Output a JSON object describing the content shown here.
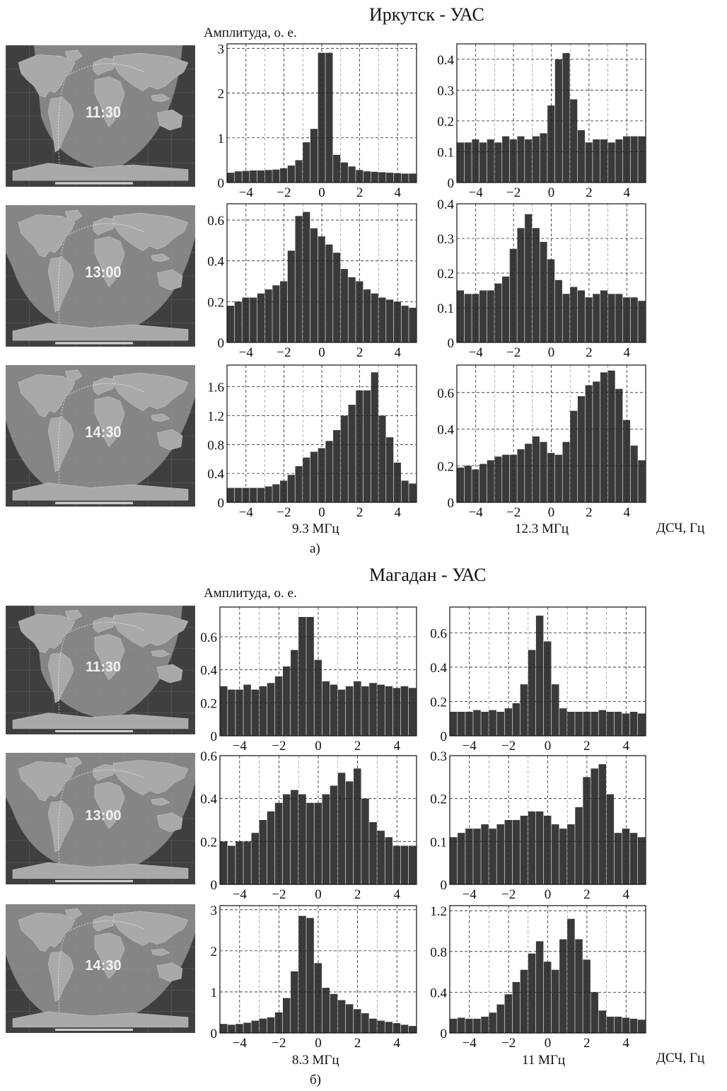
{
  "figure": {
    "panels": [
      {
        "title": "Иркутск - УАС",
        "amplitude_label": "Амплитуда, о. е.",
        "xaxis_label": "ДСЧ, Гц",
        "frequencies": [
          "9.3 МГц",
          "12.3 МГц"
        ],
        "sublabel": "а)",
        "map_times": [
          "11:30",
          "13:00",
          "14:30"
        ]
      },
      {
        "title": "Магадан - УАС",
        "amplitude_label": "Амплитуда, о. е.",
        "xaxis_label": "ДСЧ, Гц",
        "frequencies": [
          "8.3 МГц",
          "11 МГц"
        ],
        "sublabel": "б)",
        "map_times": [
          "11:30",
          "13:00",
          "14:30"
        ]
      }
    ]
  },
  "colors": {
    "bar": "#3a3a3a",
    "grid": "#222222",
    "map_land": "#a9a9a9",
    "map_ocean": "#3f3f3f",
    "map_day": "#8d8d8d",
    "map_text": "#f2f2f2"
  },
  "chart_data": [
    {
      "type": "bar",
      "xlim": [
        -5,
        5
      ],
      "ylim": [
        0,
        3.1
      ],
      "xticks": [
        -4,
        -2,
        0,
        2,
        4
      ],
      "yticks": [
        0,
        1,
        2,
        3
      ],
      "ytick_labels": [
        "0",
        "1",
        "2",
        "3"
      ],
      "grid": true,
      "bins": [
        -4.8,
        -4.4,
        -4,
        -3.6,
        -3.2,
        -2.8,
        -2.4,
        -2,
        -1.6,
        -1.2,
        -0.8,
        -0.4,
        0,
        0.4,
        0.8,
        1.2,
        1.6,
        2,
        2.4,
        2.8,
        3.2,
        3.6,
        4,
        4.4,
        4.8
      ],
      "values": [
        0.22,
        0.25,
        0.26,
        0.27,
        0.27,
        0.28,
        0.29,
        0.32,
        0.38,
        0.5,
        0.9,
        1.2,
        2.9,
        2.9,
        0.62,
        0.45,
        0.36,
        0.28,
        0.25,
        0.24,
        0.23,
        0.22,
        0.21,
        0.2,
        0.2
      ]
    },
    {
      "type": "bar",
      "xlim": [
        -5,
        5
      ],
      "ylim": [
        0,
        0.45
      ],
      "xticks": [
        -4,
        -2,
        0,
        2,
        4
      ],
      "yticks": [
        0,
        0.1,
        0.2,
        0.3,
        0.4
      ],
      "ytick_labels": [
        "0",
        "0.1",
        "0.2",
        "0.3",
        "0.4"
      ],
      "grid": true,
      "bins": [
        -4.8,
        -4.4,
        -4,
        -3.6,
        -3.2,
        -2.8,
        -2.4,
        -2,
        -1.6,
        -1.2,
        -0.8,
        -0.4,
        0,
        0.4,
        0.8,
        1.2,
        1.6,
        2,
        2.4,
        2.8,
        3.2,
        3.6,
        4,
        4.4,
        4.8
      ],
      "values": [
        0.13,
        0.13,
        0.14,
        0.13,
        0.14,
        0.13,
        0.15,
        0.14,
        0.15,
        0.14,
        0.15,
        0.16,
        0.25,
        0.4,
        0.42,
        0.27,
        0.17,
        0.13,
        0.14,
        0.14,
        0.13,
        0.14,
        0.15,
        0.15,
        0.15
      ]
    },
    {
      "type": "bar",
      "xlim": [
        -5,
        5
      ],
      "ylim": [
        0,
        0.68
      ],
      "xticks": [
        -4,
        -2,
        0,
        2,
        4
      ],
      "yticks": [
        0,
        0.2,
        0.4,
        0.6
      ],
      "ytick_labels": [
        "0",
        "0.2",
        "0.4",
        "0.6"
      ],
      "grid": true,
      "bins": [
        -4.8,
        -4.4,
        -4,
        -3.6,
        -3.2,
        -2.8,
        -2.4,
        -2,
        -1.6,
        -1.2,
        -0.8,
        -0.4,
        0,
        0.4,
        0.8,
        1.2,
        1.6,
        2,
        2.4,
        2.8,
        3.2,
        3.6,
        4,
        4.4,
        4.8
      ],
      "values": [
        0.18,
        0.2,
        0.22,
        0.22,
        0.24,
        0.26,
        0.28,
        0.3,
        0.45,
        0.62,
        0.64,
        0.56,
        0.52,
        0.48,
        0.44,
        0.36,
        0.32,
        0.3,
        0.26,
        0.24,
        0.22,
        0.21,
        0.2,
        0.18,
        0.17
      ]
    },
    {
      "type": "bar",
      "xlim": [
        -5,
        5
      ],
      "ylim": [
        0,
        0.4
      ],
      "xticks": [
        -4,
        -2,
        0,
        2,
        4
      ],
      "yticks": [
        0,
        0.1,
        0.2,
        0.3,
        0.4
      ],
      "ytick_labels": [
        "0",
        "0.1",
        "0.2",
        "0.3",
        "0.4"
      ],
      "grid": true,
      "bins": [
        -4.8,
        -4.4,
        -4,
        -3.6,
        -3.2,
        -2.8,
        -2.4,
        -2,
        -1.6,
        -1.2,
        -0.8,
        -0.4,
        0,
        0.4,
        0.8,
        1.2,
        1.6,
        2,
        2.4,
        2.8,
        3.2,
        3.6,
        4,
        4.4,
        4.8
      ],
      "values": [
        0.15,
        0.14,
        0.14,
        0.15,
        0.15,
        0.17,
        0.19,
        0.27,
        0.33,
        0.37,
        0.33,
        0.29,
        0.24,
        0.18,
        0.14,
        0.16,
        0.15,
        0.13,
        0.14,
        0.15,
        0.14,
        0.14,
        0.13,
        0.13,
        0.12
      ]
    },
    {
      "type": "bar",
      "xlim": [
        -5,
        5
      ],
      "ylim": [
        0,
        1.9
      ],
      "xticks": [
        -4,
        -2,
        0,
        2,
        4
      ],
      "yticks": [
        0,
        0.4,
        0.8,
        1.2,
        1.6
      ],
      "ytick_labels": [
        "0",
        "0.4",
        "0.8",
        "1.2",
        "1.6"
      ],
      "grid": true,
      "bins": [
        -4.8,
        -4.4,
        -4,
        -3.6,
        -3.2,
        -2.8,
        -2.4,
        -2,
        -1.6,
        -1.2,
        -0.8,
        -0.4,
        0,
        0.4,
        0.8,
        1.2,
        1.6,
        2,
        2.4,
        2.8,
        3.2,
        3.6,
        4,
        4.4,
        4.8
      ],
      "values": [
        0.2,
        0.2,
        0.2,
        0.2,
        0.2,
        0.22,
        0.25,
        0.3,
        0.38,
        0.5,
        0.62,
        0.7,
        0.75,
        0.85,
        1.0,
        1.2,
        1.35,
        1.55,
        1.55,
        1.8,
        1.2,
        0.9,
        0.55,
        0.3,
        0.26
      ]
    },
    {
      "type": "bar",
      "xlim": [
        -5,
        5
      ],
      "ylim": [
        0,
        0.75
      ],
      "xticks": [
        -4,
        -2,
        0,
        2,
        4
      ],
      "yticks": [
        0,
        0.2,
        0.4,
        0.6
      ],
      "ytick_labels": [
        "0",
        "0.2",
        "0.4",
        "0.6"
      ],
      "grid": true,
      "bins": [
        -4.8,
        -4.4,
        -4,
        -3.6,
        -3.2,
        -2.8,
        -2.4,
        -2,
        -1.6,
        -1.2,
        -0.8,
        -0.4,
        0,
        0.4,
        0.8,
        1.2,
        1.6,
        2,
        2.4,
        2.8,
        3.2,
        3.6,
        4,
        4.4,
        4.8
      ],
      "values": [
        0.19,
        0.2,
        0.18,
        0.21,
        0.23,
        0.25,
        0.26,
        0.26,
        0.29,
        0.32,
        0.36,
        0.33,
        0.27,
        0.26,
        0.33,
        0.5,
        0.58,
        0.64,
        0.66,
        0.71,
        0.72,
        0.62,
        0.45,
        0.31,
        0.23
      ]
    },
    {
      "type": "bar",
      "xlim": [
        -5,
        5
      ],
      "ylim": [
        0,
        0.78
      ],
      "xticks": [
        -4,
        -2,
        0,
        2,
        4
      ],
      "yticks": [
        0,
        0.2,
        0.4,
        0.6
      ],
      "ytick_labels": [
        "0",
        "0.2",
        "0.4",
        "0.6"
      ],
      "grid": true,
      "bins": [
        -4.8,
        -4.4,
        -4,
        -3.6,
        -3.2,
        -2.8,
        -2.4,
        -2,
        -1.6,
        -1.2,
        -0.8,
        -0.4,
        0,
        0.4,
        0.8,
        1.2,
        1.6,
        2,
        2.4,
        2.8,
        3.2,
        3.6,
        4,
        4.4,
        4.8
      ],
      "values": [
        0.3,
        0.28,
        0.28,
        0.31,
        0.28,
        0.3,
        0.32,
        0.36,
        0.42,
        0.52,
        0.72,
        0.72,
        0.46,
        0.33,
        0.31,
        0.28,
        0.3,
        0.33,
        0.3,
        0.32,
        0.31,
        0.3,
        0.29,
        0.3,
        0.29
      ]
    },
    {
      "type": "bar",
      "xlim": [
        -5,
        5
      ],
      "ylim": [
        0,
        0.75
      ],
      "xticks": [
        -4,
        -2,
        0,
        2,
        4
      ],
      "yticks": [
        0,
        0.2,
        0.4,
        0.6
      ],
      "ytick_labels": [
        "0",
        "0.2",
        "0.4",
        "0.6"
      ],
      "grid": true,
      "bins": [
        -4.8,
        -4.4,
        -4,
        -3.6,
        -3.2,
        -2.8,
        -2.4,
        -2,
        -1.6,
        -1.2,
        -0.8,
        -0.4,
        0,
        0.4,
        0.8,
        1.2,
        1.6,
        2,
        2.4,
        2.8,
        3.2,
        3.6,
        4,
        4.4,
        4.8
      ],
      "values": [
        0.14,
        0.14,
        0.14,
        0.15,
        0.14,
        0.15,
        0.14,
        0.16,
        0.19,
        0.3,
        0.5,
        0.7,
        0.55,
        0.3,
        0.16,
        0.14,
        0.14,
        0.14,
        0.14,
        0.15,
        0.14,
        0.14,
        0.13,
        0.14,
        0.13
      ]
    },
    {
      "type": "bar",
      "xlim": [
        -5,
        5
      ],
      "ylim": [
        0,
        0.6
      ],
      "xticks": [
        -4,
        -2,
        0,
        2,
        4
      ],
      "yticks": [
        0,
        0.2,
        0.4,
        0.6
      ],
      "ytick_labels": [
        "0",
        "0.2",
        "0.4",
        "0.6"
      ],
      "grid": true,
      "bins": [
        -4.8,
        -4.4,
        -4,
        -3.6,
        -3.2,
        -2.8,
        -2.4,
        -2,
        -1.6,
        -1.2,
        -0.8,
        -0.4,
        0,
        0.4,
        0.8,
        1.2,
        1.6,
        2,
        2.4,
        2.8,
        3.2,
        3.6,
        4,
        4.4,
        4.8
      ],
      "values": [
        0.2,
        0.18,
        0.2,
        0.2,
        0.24,
        0.3,
        0.34,
        0.38,
        0.42,
        0.44,
        0.42,
        0.38,
        0.38,
        0.42,
        0.46,
        0.52,
        0.48,
        0.54,
        0.4,
        0.29,
        0.25,
        0.22,
        0.18,
        0.18,
        0.18
      ]
    },
    {
      "type": "bar",
      "xlim": [
        -5,
        5
      ],
      "ylim": [
        0,
        0.3
      ],
      "xticks": [
        -4,
        -2,
        0,
        2,
        4
      ],
      "yticks": [
        0,
        0.1,
        0.2,
        0.3
      ],
      "ytick_labels": [
        "0",
        "0.1",
        "0.2",
        "0.3"
      ],
      "grid": true,
      "bins": [
        -4.8,
        -4.4,
        -4,
        -3.6,
        -3.2,
        -2.8,
        -2.4,
        -2,
        -1.6,
        -1.2,
        -0.8,
        -0.4,
        0,
        0.4,
        0.8,
        1.2,
        1.6,
        2,
        2.4,
        2.8,
        3.2,
        3.6,
        4,
        4.4,
        4.8
      ],
      "values": [
        0.11,
        0.12,
        0.13,
        0.13,
        0.14,
        0.13,
        0.14,
        0.15,
        0.15,
        0.16,
        0.17,
        0.17,
        0.16,
        0.14,
        0.13,
        0.14,
        0.18,
        0.25,
        0.27,
        0.28,
        0.21,
        0.12,
        0.13,
        0.12,
        0.11
      ]
    },
    {
      "type": "bar",
      "xlim": [
        -5,
        5
      ],
      "ylim": [
        0,
        3.1
      ],
      "xticks": [
        -4,
        -2,
        0,
        2,
        4
      ],
      "yticks": [
        0,
        1,
        2,
        3
      ],
      "ytick_labels": [
        "0",
        "1",
        "2",
        "3"
      ],
      "grid": true,
      "bins": [
        -4.8,
        -4.4,
        -4,
        -3.6,
        -3.2,
        -2.8,
        -2.4,
        -2,
        -1.6,
        -1.2,
        -0.8,
        -0.4,
        0,
        0.4,
        0.8,
        1.2,
        1.6,
        2,
        2.4,
        2.8,
        3.2,
        3.6,
        4,
        4.4,
        4.8
      ],
      "values": [
        0.22,
        0.2,
        0.22,
        0.25,
        0.3,
        0.35,
        0.38,
        0.5,
        0.85,
        1.5,
        2.85,
        2.8,
        1.7,
        1.1,
        0.95,
        0.8,
        0.7,
        0.58,
        0.48,
        0.35,
        0.3,
        0.27,
        0.24,
        0.2,
        0.17
      ]
    },
    {
      "type": "bar",
      "xlim": [
        -5,
        5
      ],
      "ylim": [
        0,
        1.25
      ],
      "xticks": [
        -4,
        -2,
        0,
        2,
        4
      ],
      "yticks": [
        0,
        0.4,
        0.8,
        1.2
      ],
      "ytick_labels": [
        "0",
        "0.4",
        "0.8",
        "1.2"
      ],
      "grid": true,
      "bins": [
        -4.8,
        -4.4,
        -4,
        -3.6,
        -3.2,
        -2.8,
        -2.4,
        -2,
        -1.6,
        -1.2,
        -0.8,
        -0.4,
        0,
        0.4,
        0.8,
        1.2,
        1.6,
        2,
        2.4,
        2.8,
        3.2,
        3.6,
        4,
        4.4,
        4.8
      ],
      "values": [
        0.14,
        0.15,
        0.14,
        0.14,
        0.16,
        0.2,
        0.28,
        0.38,
        0.5,
        0.62,
        0.78,
        0.9,
        0.7,
        0.62,
        0.92,
        1.12,
        0.92,
        0.72,
        0.4,
        0.22,
        0.16,
        0.16,
        0.15,
        0.14,
        0.13
      ]
    }
  ]
}
